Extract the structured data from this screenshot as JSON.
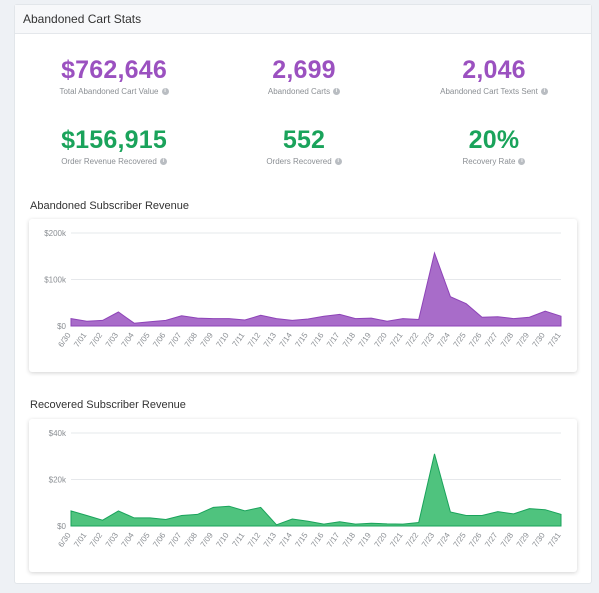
{
  "panel": {
    "title": "Abandoned Cart Stats"
  },
  "stats": [
    {
      "value": "$762,646",
      "label": "Total Abandoned Cart Value",
      "color": "#9b51c0"
    },
    {
      "value": "2,699",
      "label": "Abandoned Carts",
      "color": "#9b51c0"
    },
    {
      "value": "2,046",
      "label": "Abandoned Cart Texts Sent",
      "color": "#9b51c0"
    },
    {
      "value": "$156,915",
      "label": "Order Revenue Recovered",
      "color": "#1aa35b"
    },
    {
      "value": "552",
      "label": "Orders Recovered",
      "color": "#1aa35b"
    },
    {
      "value": "20%",
      "label": "Recovery Rate",
      "color": "#1aa35b"
    }
  ],
  "chart_data": [
    {
      "type": "area",
      "title": "Abandoned Subscriber Revenue",
      "categories": [
        "6/30",
        "7/01",
        "7/02",
        "7/03",
        "7/04",
        "7/05",
        "7/06",
        "7/07",
        "7/08",
        "7/09",
        "7/10",
        "7/11",
        "7/12",
        "7/13",
        "7/14",
        "7/15",
        "7/16",
        "7/17",
        "7/18",
        "7/19",
        "7/20",
        "7/21",
        "7/22",
        "7/23",
        "7/24",
        "7/25",
        "7/26",
        "7/27",
        "7/28",
        "7/29",
        "7/30",
        "7/31"
      ],
      "series": [
        {
          "values": [
            16000,
            10000,
            12000,
            30000,
            6000,
            9000,
            12000,
            22000,
            17000,
            16000,
            16000,
            13000,
            23000,
            16000,
            12000,
            15000,
            21000,
            25000,
            16000,
            17000,
            10000,
            16000,
            14000,
            157000,
            63000,
            48000,
            19000,
            20000,
            16000,
            19000,
            32000,
            21000
          ]
        }
      ],
      "ylim": [
        0,
        200000
      ],
      "yticks": [
        "$0",
        "$100k",
        "$200k"
      ],
      "ytick_values": [
        0,
        100000,
        200000
      ],
      "grid": true,
      "color": "#a86cc9",
      "line_color": "#8e44b8"
    },
    {
      "type": "area",
      "title": "Recovered Subscriber Revenue",
      "categories": [
        "6/30",
        "7/01",
        "7/02",
        "7/03",
        "7/04",
        "7/05",
        "7/06",
        "7/07",
        "7/08",
        "7/09",
        "7/10",
        "7/11",
        "7/12",
        "7/13",
        "7/14",
        "7/15",
        "7/16",
        "7/17",
        "7/18",
        "7/19",
        "7/20",
        "7/21",
        "7/22",
        "7/23",
        "7/24",
        "7/25",
        "7/26",
        "7/27",
        "7/28",
        "7/29",
        "7/30",
        "7/31"
      ],
      "series": [
        {
          "values": [
            6500,
            4500,
            2500,
            6500,
            3500,
            3500,
            2800,
            4500,
            5000,
            8000,
            8500,
            6500,
            8000,
            500,
            3000,
            2000,
            800,
            1800,
            800,
            1200,
            900,
            800,
            1500,
            31000,
            6000,
            4500,
            4500,
            6200,
            5200,
            7500,
            7000,
            5000
          ]
        }
      ],
      "ylim": [
        0,
        40000
      ],
      "yticks": [
        "$0",
        "$20k",
        "$40k"
      ],
      "ytick_values": [
        0,
        20000,
        40000
      ],
      "grid": true,
      "color": "#4fc37e",
      "line_color": "#1aa35b"
    }
  ]
}
